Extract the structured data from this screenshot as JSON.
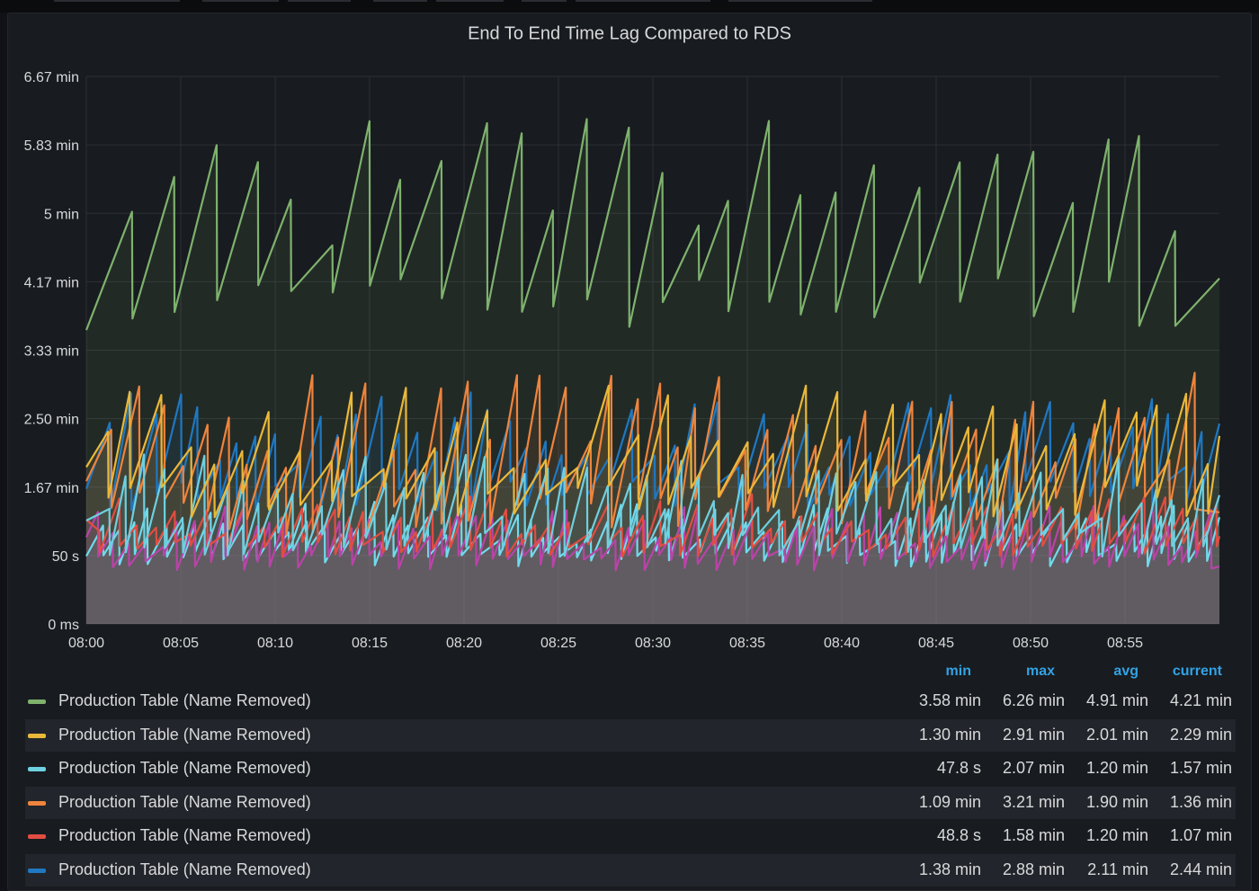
{
  "panel": {
    "title": "End To End Time Lag Compared to RDS"
  },
  "legend": {
    "headers": {
      "min": "min",
      "max": "max",
      "avg": "avg",
      "current": "current"
    },
    "rows": [
      {
        "name": "Production Table (Name Removed)",
        "color": "#7eb26d",
        "min": "3.58 min",
        "max": "6.26 min",
        "avg": "4.91 min",
        "current": "4.21 min"
      },
      {
        "name": "Production Table (Name Removed)",
        "color": "#eab839",
        "min": "1.30 min",
        "max": "2.91 min",
        "avg": "2.01 min",
        "current": "2.29 min"
      },
      {
        "name": "Production Table (Name Removed)",
        "color": "#6ed0e0",
        "min": "47.8 s",
        "max": "2.07 min",
        "avg": "1.20 min",
        "current": "1.57 min"
      },
      {
        "name": "Production Table (Name Removed)",
        "color": "#ef843c",
        "min": "1.09 min",
        "max": "3.21 min",
        "avg": "1.90 min",
        "current": "1.36 min"
      },
      {
        "name": "Production Table (Name Removed)",
        "color": "#e24d42",
        "min": "48.8 s",
        "max": "1.58 min",
        "avg": "1.20 min",
        "current": "1.07 min"
      },
      {
        "name": "Production Table (Name Removed)",
        "color": "#1f78c1",
        "min": "1.38 min",
        "max": "2.88 min",
        "avg": "2.11 min",
        "current": "2.44 min"
      }
    ]
  },
  "chart_data": {
    "type": "line",
    "title": "End To End Time Lag Compared to RDS",
    "xlabel": "",
    "ylabel": "",
    "x_ticks": [
      "08:00",
      "08:05",
      "08:10",
      "08:15",
      "08:20",
      "08:25",
      "08:30",
      "08:35",
      "08:40",
      "08:45",
      "08:50",
      "08:55"
    ],
    "y_ticks": [
      "0 ms",
      "50 s",
      "1.67 min",
      "2.50 min",
      "3.33 min",
      "4.17 min",
      "5 min",
      "5.83 min",
      "6.67 min"
    ],
    "ylim_min": [
      0,
      6.67
    ],
    "xlim": [
      "08:00",
      "09:00"
    ],
    "grid": true,
    "legend": "bottom",
    "fill": true,
    "series": [
      {
        "name": "Production Table (Name Removed)",
        "color": "#7eb26d",
        "min": 3.58,
        "max": 6.26,
        "avg": 4.91,
        "current": 4.21,
        "period_min": 2.0
      },
      {
        "name": "Production Table (Name Removed)",
        "color": "#eab839",
        "min": 1.3,
        "max": 2.91,
        "avg": 2.01,
        "current": 2.29,
        "period_min": 1.4
      },
      {
        "name": "Production Table (Name Removed)",
        "color": "#6ed0e0",
        "min": 0.797,
        "max": 2.07,
        "avg": 1.2,
        "current": 1.57,
        "period_min": 1.0
      },
      {
        "name": "Production Table (Name Removed)",
        "color": "#ef843c",
        "min": 1.09,
        "max": 3.21,
        "avg": 1.9,
        "current": 1.36,
        "period_min": 1.2
      },
      {
        "name": "Production Table (Name Removed)",
        "color": "#e24d42",
        "min": 0.813,
        "max": 1.58,
        "avg": 1.2,
        "current": 1.07,
        "period_min": 0.9
      },
      {
        "name": "Production Table (Name Removed)",
        "color": "#1f78c1",
        "min": 1.38,
        "max": 2.88,
        "avg": 2.11,
        "current": 2.44,
        "period_min": 1.1
      },
      {
        "name": "",
        "color": "#ba43a9",
        "min": 0.65,
        "max": 1.45,
        "avg": 1.05,
        "current": 0.7,
        "period_min": 0.8
      },
      {
        "name": "",
        "color": "#70dbed",
        "min": 0.7,
        "max": 1.5,
        "avg": 1.1,
        "current": 1.3,
        "period_min": 0.85
      }
    ]
  }
}
